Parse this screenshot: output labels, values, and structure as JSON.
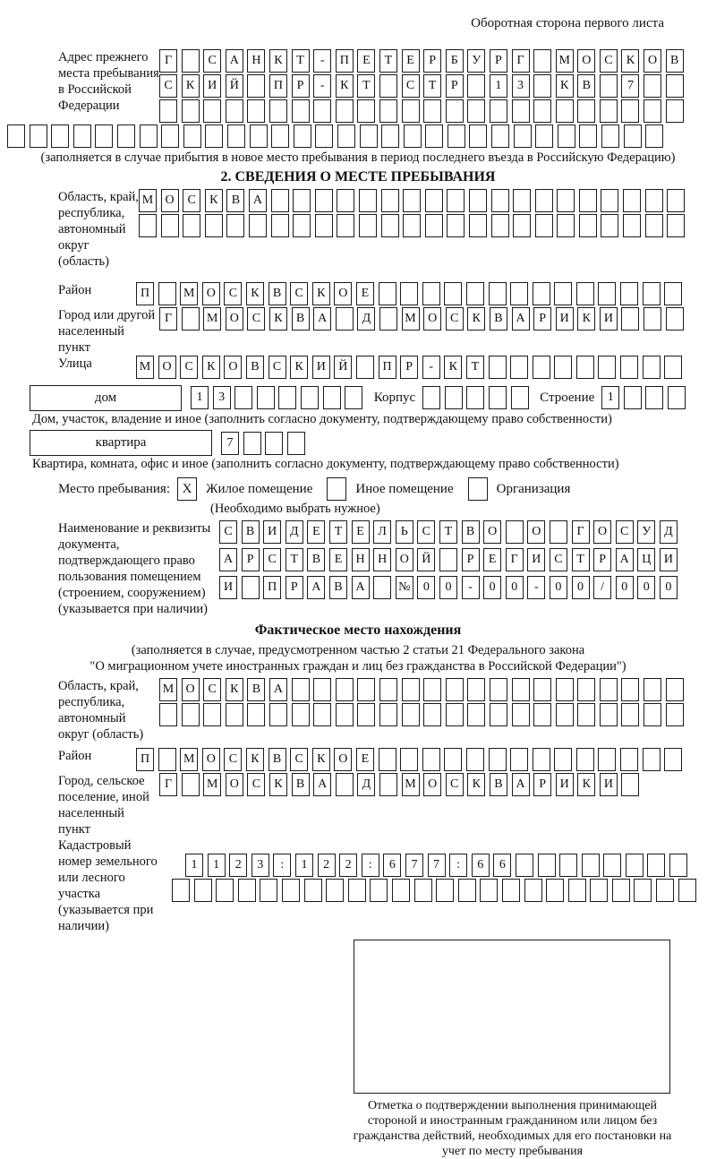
{
  "page": {
    "header_note": "Оборотная сторона первого листа"
  },
  "prev_address": {
    "label": "Адрес прежнего места пребывания в Российской Федерации",
    "row1": [
      "Г",
      "",
      "С",
      "А",
      "Н",
      "К",
      "Т",
      "-",
      "П",
      "Е",
      "Т",
      "Е",
      "Р",
      "Б",
      "У",
      "Р",
      "Г",
      "",
      "М",
      "О",
      "С",
      "К",
      "О",
      "В"
    ],
    "row2": [
      "С",
      "К",
      "И",
      "Й",
      "",
      "П",
      "Р",
      "-",
      "К",
      "Т",
      "",
      "С",
      "Т",
      "Р",
      "",
      "1",
      "3",
      "",
      "К",
      "В",
      "",
      "7",
      "",
      ""
    ],
    "row3": [
      "",
      "",
      "",
      "",
      "",
      "",
      "",
      "",
      "",
      "",
      "",
      "",
      "",
      "",
      "",
      "",
      "",
      "",
      "",
      "",
      "",
      "",
      "",
      ""
    ],
    "full_row": [
      "",
      "",
      "",
      "",
      "",
      "",
      "",
      "",
      "",
      "",
      "",
      "",
      "",
      "",
      "",
      "",
      "",
      "",
      "",
      "",
      "",
      "",
      "",
      "",
      "",
      "",
      "",
      "",
      "",
      ""
    ],
    "caption": "(заполняется в случае прибытия в новое место пребывания в период последнего въезда в Российскую Федерацию)"
  },
  "section2": {
    "title": "2. СВЕДЕНИЯ О МЕСТЕ ПРЕБЫВАНИЯ",
    "region": {
      "label": "Область, край, республика, автономный округ (область)",
      "row1": [
        "М",
        "О",
        "С",
        "К",
        "В",
        "А",
        "",
        "",
        "",
        "",
        "",
        "",
        "",
        "",
        "",
        "",
        "",
        "",
        "",
        "",
        "",
        "",
        "",
        "",
        ""
      ],
      "row2": [
        "",
        "",
        "",
        "",
        "",
        "",
        "",
        "",
        "",
        "",
        "",
        "",
        "",
        "",
        "",
        "",
        "",
        "",
        "",
        "",
        "",
        "",
        "",
        "",
        ""
      ]
    },
    "district": {
      "label": "Район",
      "row": [
        "П",
        "",
        "М",
        "О",
        "С",
        "К",
        "В",
        "С",
        "К",
        "О",
        "Е",
        "",
        "",
        "",
        "",
        "",
        "",
        "",
        "",
        "",
        "",
        "",
        "",
        "",
        ""
      ]
    },
    "city": {
      "label": "Город или другой населенный пункт",
      "row": [
        "Г",
        "",
        "М",
        "О",
        "С",
        "К",
        "В",
        "А",
        "",
        "Д",
        "",
        "М",
        "О",
        "С",
        "К",
        "В",
        "А",
        "Р",
        "И",
        "К",
        "И",
        "",
        "",
        ""
      ]
    },
    "street": {
      "label": "Улица",
      "row": [
        "М",
        "О",
        "С",
        "К",
        "О",
        "В",
        "С",
        "К",
        "И",
        "Й",
        "",
        "П",
        "Р",
        "-",
        "К",
        "Т",
        "",
        "",
        "",
        "",
        "",
        "",
        "",
        "",
        ""
      ]
    },
    "house": {
      "box_label": "дом",
      "cells": [
        "1",
        "3",
        "",
        "",
        "",
        "",
        "",
        ""
      ],
      "korpus_label": "Корпус",
      "korpus_cells": [
        "",
        "",
        "",
        "",
        ""
      ],
      "stroenie_label": "Строение",
      "stroenie_cells": [
        "1",
        "",
        "",
        ""
      ],
      "caption": "Дом, участок, владение и иное (заполнить согласно документу, подтверждающему право собственности)"
    },
    "apartment": {
      "box_label": "квартира",
      "cells": [
        "7",
        "",
        "",
        ""
      ],
      "caption": "Квартира, комната, офис и иное (заполнить согласно документу, подтверждающему право собственности)"
    },
    "stay_type": {
      "label": "Место пребывания:",
      "options": [
        {
          "label": "Жилое помещение",
          "checked": "X"
        },
        {
          "label": "Иное помещение",
          "checked": ""
        },
        {
          "label": "Организация",
          "checked": ""
        }
      ],
      "note": "(Необходимо выбрать нужное)"
    },
    "document": {
      "label": "Наименование и реквизиты документа, подтверждающего право пользования помещением (строением, сооружением) (указывается при наличии)",
      "row1": [
        "С",
        "В",
        "И",
        "Д",
        "Е",
        "Т",
        "Е",
        "Л",
        "Ь",
        "С",
        "Т",
        "В",
        "О",
        "",
        "О",
        "",
        "Г",
        "О",
        "С",
        "У",
        "Д"
      ],
      "row2": [
        "А",
        "Р",
        "С",
        "Т",
        "В",
        "Е",
        "Н",
        "Н",
        "О",
        "Й",
        "",
        "Р",
        "Е",
        "Г",
        "И",
        "С",
        "Т",
        "Р",
        "А",
        "Ц",
        "И"
      ],
      "row3": [
        "И",
        "",
        "П",
        "Р",
        "А",
        "В",
        "А",
        "",
        "№",
        "0",
        "0",
        "-",
        "0",
        "0",
        "-",
        "0",
        "0",
        "/",
        "0",
        "0",
        "0"
      ]
    }
  },
  "actual_location": {
    "title": "Фактическое место нахождения",
    "caption_line1": "(заполняется в случае, предусмотренном частью 2 статьи 21 Федерального закона",
    "caption_line2": "\"О миграционном учете иностранных граждан и лиц без гражданства в Российской Федерации\")",
    "region": {
      "label": "Область, край, республика, автономный округ (область)",
      "row1": [
        "М",
        "О",
        "С",
        "К",
        "В",
        "А",
        "",
        "",
        "",
        "",
        "",
        "",
        "",
        "",
        "",
        "",
        "",
        "",
        "",
        "",
        "",
        "",
        "",
        ""
      ],
      "row2": [
        "",
        "",
        "",
        "",
        "",
        "",
        "",
        "",
        "",
        "",
        "",
        "",
        "",
        "",
        "",
        "",
        "",
        "",
        "",
        "",
        "",
        "",
        "",
        ""
      ]
    },
    "district": {
      "label": "Район",
      "row": [
        "П",
        "",
        "М",
        "О",
        "С",
        "К",
        "В",
        "С",
        "К",
        "О",
        "Е",
        "",
        "",
        "",
        "",
        "",
        "",
        "",
        "",
        "",
        "",
        "",
        "",
        "",
        ""
      ]
    },
    "city": {
      "label": "Город, сельское поселение, иной населенный пункт",
      "row": [
        "Г",
        "",
        "М",
        "О",
        "С",
        "К",
        "В",
        "А",
        "",
        "Д",
        "",
        "М",
        "О",
        "С",
        "К",
        "В",
        "А",
        "Р",
        "И",
        "К",
        "И",
        ""
      ]
    },
    "cadastral": {
      "label": "Кадастровый номер земельного или лесного участка (указывается при наличии)",
      "row1": [
        "1",
        "1",
        "2",
        "3",
        ":",
        "1",
        "2",
        "2",
        ":",
        "6",
        "7",
        "7",
        ":",
        "6",
        "6",
        "",
        "",
        "",
        "",
        "",
        "",
        "",
        ""
      ],
      "row2": [
        "",
        "",
        "",
        "",
        "",
        "",
        "",
        "",
        "",
        "",
        "",
        "",
        "",
        "",
        "",
        "",
        "",
        "",
        "",
        "",
        "",
        "",
        "",
        ""
      ]
    },
    "stamp_box_caption": "Отметка о подтверждении выполнения принимающей стороной и иностранным гражданином или лицом без гражданства действий, необходимых для его постановки на учет по месту пребывания"
  }
}
